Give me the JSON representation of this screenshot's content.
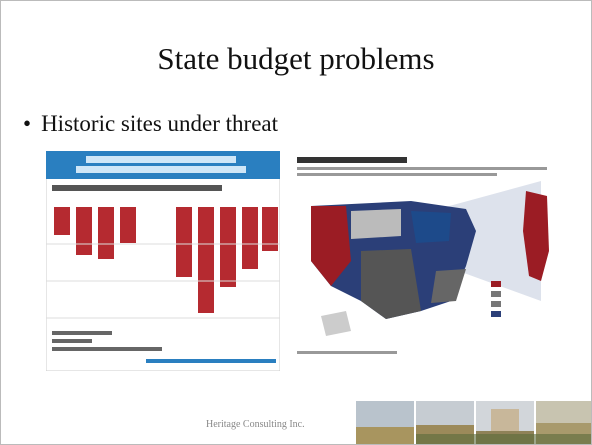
{
  "title": "State budget problems",
  "bullets": [
    "Historic sites under threat"
  ],
  "footer": "Heritage Consulting Inc."
}
